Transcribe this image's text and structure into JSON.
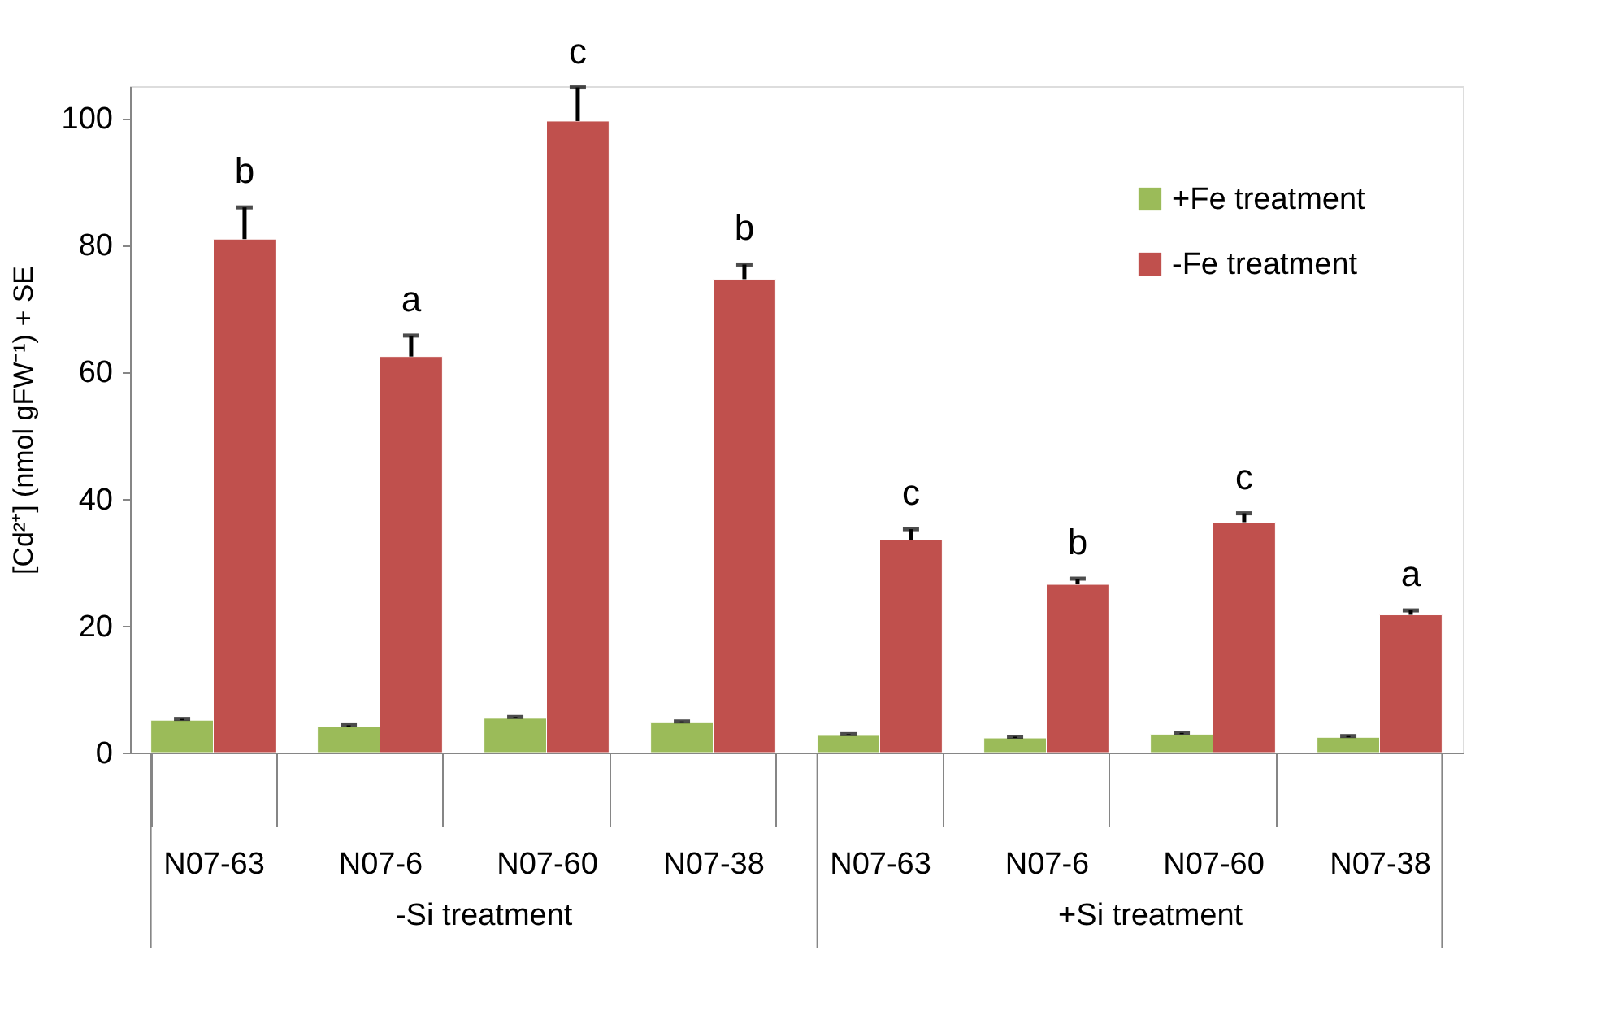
{
  "chart_data": {
    "type": "bar",
    "ylabel": "[Cd²⁺] (nmol gFW⁻¹) + SE",
    "categories": [
      "N07-63",
      "N07-6",
      "N07-60",
      "N07-38",
      "N07-63",
      "N07-6",
      "N07-60",
      "N07-38"
    ],
    "series": [
      {
        "name": "+Fe treatment",
        "color": "#9bbb59",
        "values": [
          5.1,
          4.1,
          5.4,
          4.7,
          2.7,
          2.3,
          2.9,
          2.4
        ],
        "errors": [
          0.2,
          0.2,
          0.2,
          0.2,
          0.2,
          0.2,
          0.2,
          0.2
        ]
      },
      {
        "name": "-Fe treatment",
        "color": "#c0504d",
        "values": [
          80.9,
          62.4,
          99.5,
          74.6,
          33.5,
          26.5,
          36.3,
          21.7
        ],
        "errors": [
          5.0,
          3.3,
          5.3,
          2.3,
          1.7,
          0.9,
          1.4,
          0.7
        ],
        "value_labels": [
          "b",
          "a",
          "c",
          "b",
          "c",
          "b",
          "c",
          "a"
        ]
      }
    ],
    "annotations": [
      "-Si treatment",
      "+Si treatment"
    ],
    "ylim": [
      0,
      105
    ],
    "yticks": [
      0,
      20,
      40,
      60,
      80,
      100
    ],
    "grid": false,
    "legend": "top right"
  }
}
